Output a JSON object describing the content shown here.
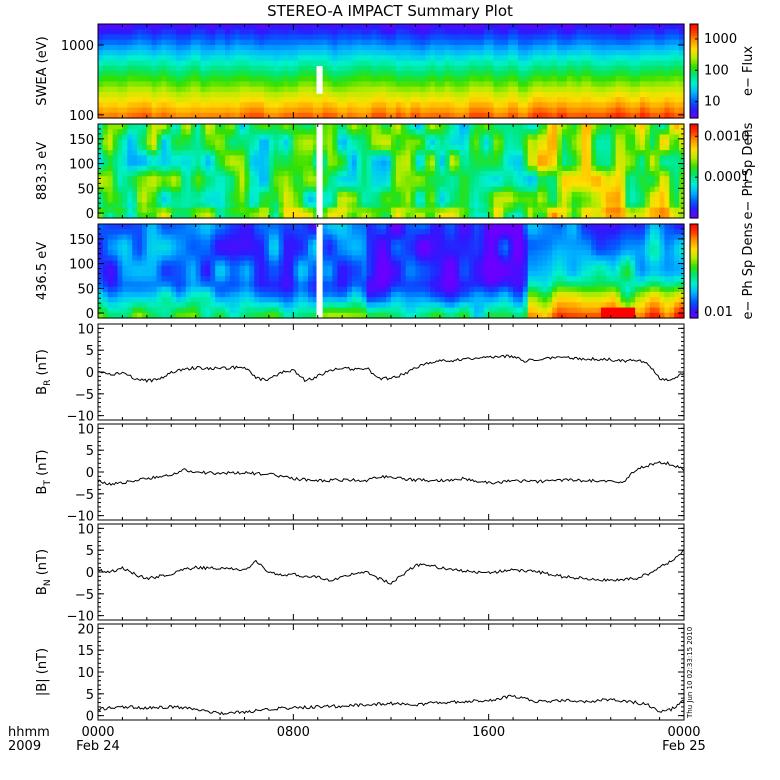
{
  "title": "STEREO-A IMPACT Summary Plot",
  "footer": {
    "hhmm_label": "hhmm",
    "year_label": "2009",
    "ticks": [
      {
        "time": "0000",
        "date": "Feb 24",
        "hour": 0
      },
      {
        "time": "0800",
        "date": "",
        "hour": 8
      },
      {
        "time": "1600",
        "date": "",
        "hour": 16
      },
      {
        "time": "0000",
        "date": "Feb 25",
        "hour": 24
      }
    ]
  },
  "timestamp": "Thu Jun 10 02:33:15 2010",
  "colors": {
    "trace": "#000000",
    "data_gap": "#ffffff",
    "colormap": [
      "#6a00ff",
      "#2b1bff",
      "#0062ff",
      "#00b7ff",
      "#00f0d0",
      "#00e676",
      "#33e000",
      "#b4ec00",
      "#ffe000",
      "#ff9a00",
      "#ff3c00",
      "#ff0000"
    ]
  },
  "chart_data": [
    {
      "type": "heatmap",
      "ylabel": "SWEA (eV)",
      "yscale": "log",
      "ylim": [
        90,
        2000
      ],
      "yticks": [
        "1000",
        "100"
      ],
      "ytick_values": [
        1000,
        100
      ],
      "colorbar": {
        "label": "e− Flux",
        "scale": "log",
        "ticks": [
          "1000",
          "100",
          "10"
        ],
        "tick_values": [
          1000,
          100,
          10
        ],
        "range": [
          3,
          3000
        ]
      },
      "xlim_hours": [
        0,
        24
      ],
      "data_gap_hours": [
        8.95,
        9.2
      ],
      "gap_energy_range": [
        200,
        500
      ]
    },
    {
      "type": "heatmap",
      "ylabel": "883.3 eV",
      "ylim": [
        -10,
        180
      ],
      "yticks": [
        "150",
        "100",
        "50",
        "0"
      ],
      "ytick_values": [
        150,
        100,
        50,
        0
      ],
      "colorbar": {
        "label": "e− Ph Sp Dens",
        "scale": "log",
        "ticks": [
          "0.0010",
          "0.0001"
        ],
        "tick_values": [
          0.001,
          0.0001
        ],
        "range": [
          1e-05,
          0.002
        ]
      },
      "xlim_hours": [
        0,
        24
      ],
      "data_gap_hours": [
        8.95,
        9.2
      ]
    },
    {
      "type": "heatmap",
      "ylabel": "436.5 eV",
      "ylim": [
        -10,
        180
      ],
      "yticks": [
        "150",
        "100",
        "50",
        "0"
      ],
      "ytick_values": [
        150,
        100,
        50,
        0
      ],
      "colorbar": {
        "label": "e− Ph Sp Dens",
        "scale": "log",
        "ticks": [
          "0.01"
        ],
        "tick_values": [
          0.01
        ],
        "range": [
          0.008,
          0.3
        ]
      },
      "xlim_hours": [
        0,
        24
      ],
      "data_gap_hours": [
        8.95,
        9.2
      ]
    },
    {
      "type": "line",
      "ylabel": "B",
      "ysub": "R",
      "yunit": " (nT)",
      "ylim": [
        -11,
        11
      ],
      "yticks": [
        "10",
        "5",
        "0",
        "−5",
        "−10"
      ],
      "ytick_values": [
        10,
        5,
        0,
        -5,
        -10
      ],
      "x_hours": [
        0,
        0.5,
        1,
        1.5,
        2,
        2.5,
        3,
        3.5,
        4,
        5,
        6,
        6.5,
        7,
        7.5,
        8,
        8.5,
        9,
        9.5,
        10,
        10.5,
        11,
        11.5,
        12,
        12.5,
        13,
        13.5,
        14,
        14.5,
        15,
        16,
        17,
        17.5,
        18,
        19,
        20,
        21,
        21.5,
        22,
        22.5,
        23,
        23.5,
        24
      ],
      "values": [
        0,
        -0.5,
        -0.2,
        -1.5,
        -2,
        -1.8,
        0,
        0.5,
        1,
        0.8,
        1.2,
        -1.5,
        -1.8,
        0,
        0.5,
        -2,
        -1,
        0.5,
        1,
        0.5,
        1,
        -1.5,
        -1.5,
        -0.5,
        1,
        2,
        2.5,
        2.5,
        3,
        3.5,
        3.6,
        2.5,
        3,
        3.5,
        3,
        2.8,
        2.5,
        2.8,
        2,
        -1.5,
        -1.8,
        0
      ]
    },
    {
      "type": "line",
      "ylabel": "B",
      "ysub": "T",
      "yunit": " (nT)",
      "ylim": [
        -11,
        11
      ],
      "yticks": [
        "10",
        "5",
        "0",
        "−5",
        "−10"
      ],
      "ytick_values": [
        10,
        5,
        0,
        -5,
        -10
      ],
      "x_hours": [
        0,
        0.5,
        1,
        1.5,
        2,
        2.5,
        3,
        3.5,
        4,
        5,
        6,
        7,
        7.5,
        8,
        9,
        10,
        11,
        11.5,
        12,
        13,
        14,
        15,
        16,
        17,
        18,
        19,
        20,
        21,
        21.5,
        22,
        22.5,
        23,
        23.5,
        24
      ],
      "values": [
        -2,
        -2.8,
        -2.5,
        -2,
        -1.5,
        -1,
        -0.5,
        0.5,
        0,
        -0.3,
        -0.2,
        -0.5,
        -1,
        -1.5,
        -2,
        -1.8,
        -2,
        -1,
        -1.2,
        -1.8,
        -2,
        -1.5,
        -2.5,
        -2,
        -2.2,
        -1.8,
        -2,
        -2.2,
        -2.3,
        0.5,
        1.5,
        2.2,
        1.8,
        0.5
      ]
    },
    {
      "type": "line",
      "ylabel": "B",
      "ysub": "N",
      "yunit": " (nT)",
      "ylim": [
        -11,
        11
      ],
      "yticks": [
        "10",
        "5",
        "0",
        "−5",
        "−10"
      ],
      "ytick_values": [
        10,
        5,
        0,
        -5,
        -10
      ],
      "x_hours": [
        0,
        0.5,
        1,
        1.5,
        2,
        2.5,
        3,
        3.5,
        4,
        5,
        6,
        6.5,
        7,
        7.5,
        8,
        8.5,
        9,
        9.5,
        10,
        10.5,
        11,
        11.5,
        12,
        12.5,
        13,
        13.5,
        14,
        15,
        16,
        17,
        18,
        19,
        20,
        21,
        22,
        22.5,
        23,
        23.5,
        24
      ],
      "values": [
        0.5,
        0,
        1,
        -0.5,
        -1.5,
        -1,
        -0.5,
        0.5,
        1,
        0.8,
        0.5,
        2.5,
        0,
        -0.8,
        -0.5,
        -1,
        -1.2,
        -2,
        -1,
        -0.5,
        0,
        -1.5,
        -2.5,
        -0.5,
        1.5,
        1.8,
        1,
        0.2,
        -0.2,
        0.5,
        0,
        -1,
        -1.5,
        -2,
        -1.5,
        -0.5,
        1,
        2.5,
        5
      ]
    },
    {
      "type": "line",
      "ylabel": "|B|",
      "yunit": " (nT)",
      "ylim": [
        -1,
        21
      ],
      "yticks": [
        "20",
        "15",
        "10",
        "5",
        "0"
      ],
      "ytick_values": [
        20,
        15,
        10,
        5,
        0
      ],
      "x_hours": [
        0,
        1,
        2,
        3,
        4,
        5,
        6,
        7,
        8,
        9,
        10,
        11,
        12,
        13,
        14,
        15,
        16,
        17,
        18,
        19,
        20,
        21,
        22,
        22.5,
        23,
        23.5,
        24
      ],
      "values": [
        1.5,
        2,
        1.8,
        2,
        1.5,
        0.5,
        0.8,
        1.5,
        1.8,
        2,
        2.2,
        2.5,
        2.8,
        2.5,
        3,
        3.2,
        3.5,
        4.5,
        3.2,
        3.5,
        3.2,
        3.8,
        3,
        2.5,
        1,
        1.5,
        3.5
      ]
    }
  ]
}
